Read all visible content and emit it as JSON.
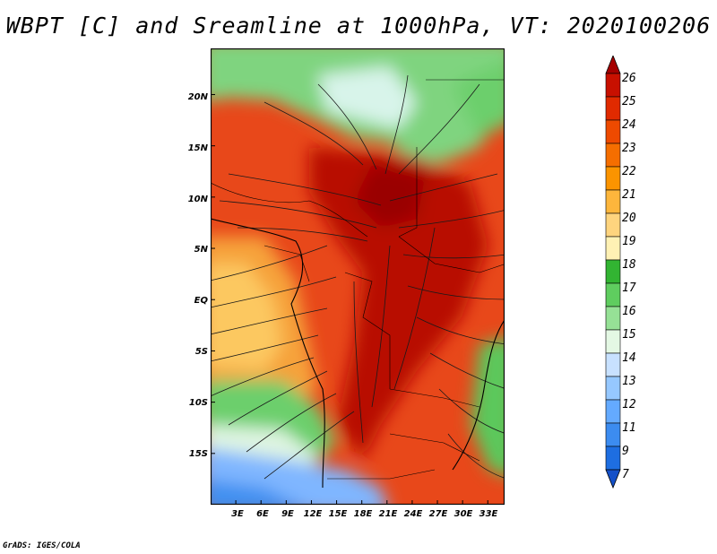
{
  "title": "WBPT [C] and Sreamline at 1000hPa, VT: 2020100206",
  "credit": "GrADS: IGES/COLA",
  "map": {
    "lat_ticks": [
      "20N",
      "15N",
      "10N",
      "5N",
      "EQ",
      "5S",
      "10S",
      "15S"
    ],
    "lon_ticks": [
      "3E",
      "6E",
      "9E",
      "12E",
      "15E",
      "18E",
      "21E",
      "24E",
      "27E",
      "30E",
      "33E"
    ],
    "extent": {
      "lon_min": 0,
      "lon_max": 35,
      "lat_min": -20,
      "lat_max": 24.5
    }
  },
  "colorbar": {
    "levels": [
      "26",
      "25",
      "24",
      "23",
      "22",
      "21",
      "20",
      "19",
      "18",
      "17",
      "16",
      "15",
      "14",
      "13",
      "12",
      "11",
      "9",
      "7"
    ],
    "colors": [
      "#a50000",
      "#c81000",
      "#e02a00",
      "#ee4a00",
      "#f56e00",
      "#fb9400",
      "#fdb63c",
      "#fed47e",
      "#fff1b4",
      "#32b432",
      "#5fcd5f",
      "#96e196",
      "#e4f8e4",
      "#c8e1ff",
      "#96c8ff",
      "#64aaff",
      "#3c8cf0",
      "#1e6ee1",
      "#1450c8"
    ]
  }
}
